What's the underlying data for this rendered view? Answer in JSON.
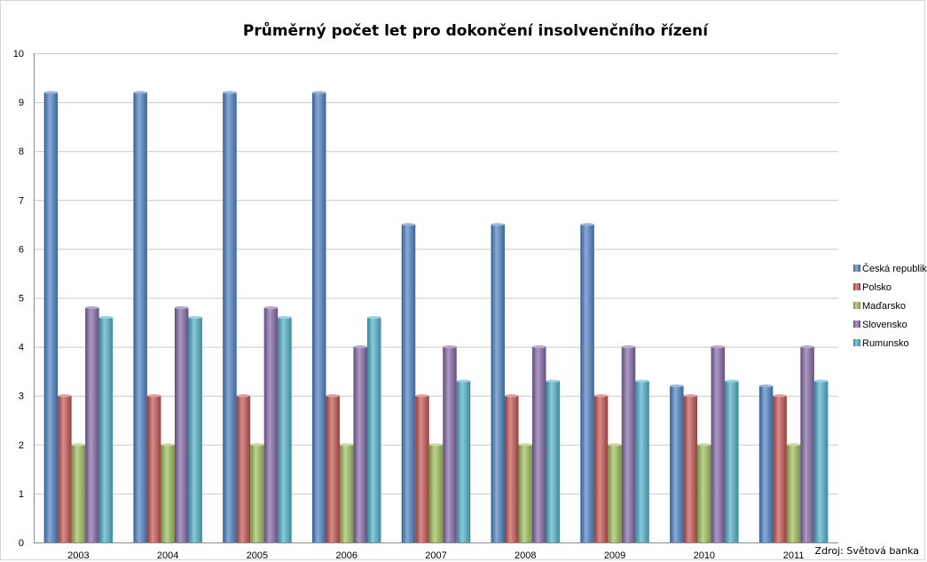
{
  "chart_data": {
    "type": "bar",
    "title": "Průměrný počet let pro dokončení insolvenčního řízení",
    "xlabel": "",
    "ylabel": "",
    "ylim": [
      0,
      10
    ],
    "yticks": [
      0,
      1,
      2,
      3,
      4,
      5,
      6,
      7,
      8,
      9,
      10
    ],
    "categories": [
      "2003",
      "2004",
      "2005",
      "2006",
      "2007",
      "2008",
      "2009",
      "2010",
      "2011"
    ],
    "series": [
      {
        "name": "Česká republika",
        "color": "#4a7ebf",
        "values": [
          9.2,
          9.2,
          9.2,
          9.2,
          6.5,
          6.5,
          6.5,
          3.2,
          3.2
        ]
      },
      {
        "name": "Polsko",
        "color": "#c0504d",
        "values": [
          3,
          3,
          3,
          3,
          3,
          3,
          3,
          3,
          3
        ]
      },
      {
        "name": "Maďarsko",
        "color": "#9bbb59",
        "values": [
          2,
          2,
          2,
          2,
          2,
          2,
          2,
          2,
          2
        ]
      },
      {
        "name": "Slovensko",
        "color": "#8064a2",
        "values": [
          4.8,
          4.8,
          4.8,
          4,
          4,
          4,
          4,
          4,
          4
        ]
      },
      {
        "name": "Rumunsko",
        "color": "#4bacc6",
        "values": [
          4.6,
          4.6,
          4.6,
          4.6,
          3.3,
          3.3,
          3.3,
          3.3,
          3.3
        ]
      }
    ],
    "grid": true,
    "legend_position": "right",
    "source": "Zdroj: Světová banka"
  }
}
